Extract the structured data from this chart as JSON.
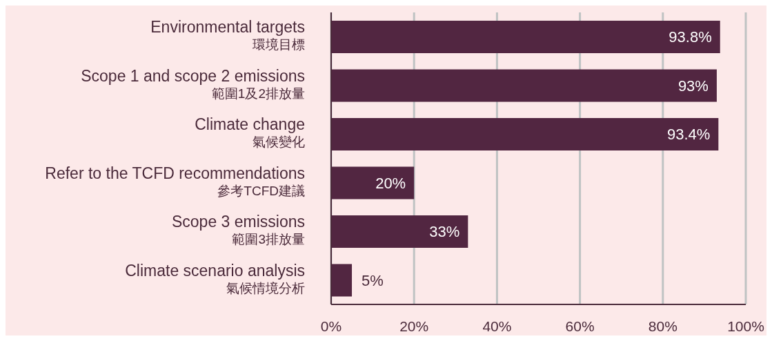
{
  "chart_data": {
    "type": "bar",
    "orientation": "horizontal",
    "categories": [
      "Environmental targets\n環境目標",
      "Scope 1 and scope 2 emissions\n範圍1及2排放量",
      "Climate change\n氣候變化",
      "Refer to the TCFD recommendations\n參考TCFD建議",
      "Scope 3 emissions\n範圍3排放量",
      "Climate scenario analysis\n氣候情境分析"
    ],
    "values": [
      93.8,
      93,
      93.4,
      20,
      33,
      5
    ],
    "value_labels": [
      "93.8%",
      "93%",
      "93.4%",
      "20%",
      "33%",
      "5%"
    ],
    "color": "#522641",
    "xlim": [
      0,
      100
    ],
    "xticks": [
      {
        "value": 0,
        "label": "0%"
      },
      {
        "value": 20,
        "label": "20%"
      },
      {
        "value": 40,
        "label": "40%"
      },
      {
        "value": 60,
        "label": "60%"
      },
      {
        "value": 80,
        "label": "80%"
      },
      {
        "value": 100,
        "label": "100%"
      }
    ],
    "grid": "x"
  }
}
